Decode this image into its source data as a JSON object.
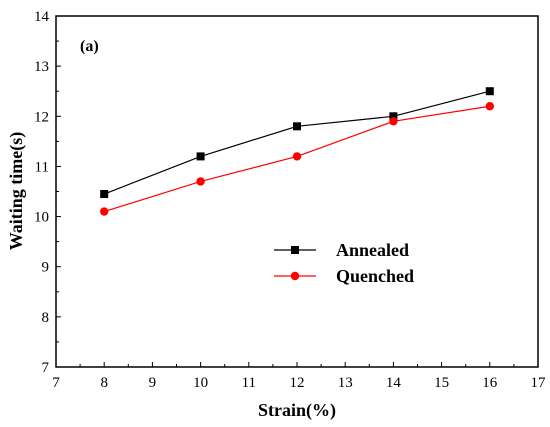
{
  "chart_data": {
    "type": "line",
    "panel_label": "(a)",
    "xlabel": "Strain(%)",
    "ylabel": "Waiting time(s)",
    "xlim": [
      7,
      17
    ],
    "ylim": [
      7,
      14
    ],
    "xticks": [
      7,
      8,
      9,
      10,
      11,
      12,
      13,
      14,
      15,
      16,
      17
    ],
    "yticks": [
      7,
      8,
      9,
      10,
      11,
      12,
      13,
      14
    ],
    "legend_position": "center-right",
    "grid": false,
    "series": [
      {
        "name": "Annealed",
        "color": "#000000",
        "marker": "square",
        "x": [
          8,
          10,
          12,
          14,
          16
        ],
        "y": [
          10.45,
          11.2,
          11.8,
          12.0,
          12.5
        ]
      },
      {
        "name": "Quenched",
        "color": "#ff0000",
        "marker": "circle",
        "x": [
          8,
          10,
          12,
          14,
          16
        ],
        "y": [
          10.1,
          10.7,
          11.2,
          11.9,
          12.2
        ]
      }
    ]
  }
}
